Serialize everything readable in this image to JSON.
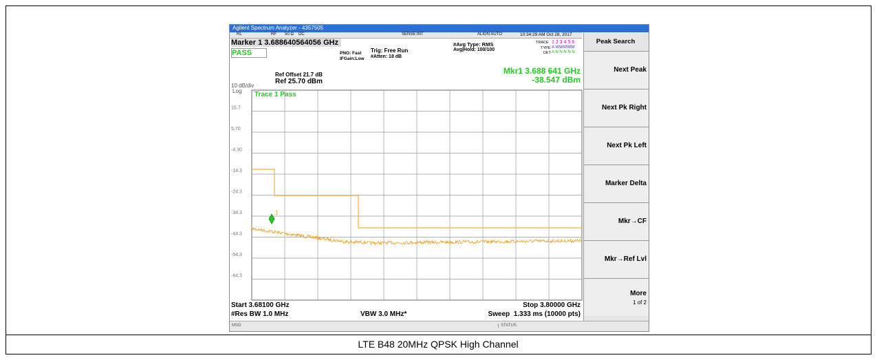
{
  "window_title": "Agilent Spectrum Analyzer - 4357505",
  "status_bar": {
    "rl": "RL",
    "rf": "RF",
    "impedance": "50 Ω",
    "coupling": "DC",
    "sense": "SENSE:INT",
    "align": "ALIGN AUTO",
    "datetime": "10:34:29 AM Oct 28, 2017"
  },
  "marker_readout": "Marker 1 3.688640564056 GHz",
  "pass_label": "PASS",
  "settings": {
    "pno": "PNO: Fast",
    "ifgain": "IFGain:Low",
    "trig": "Trig: Free Run",
    "atten": "#Atten: 18 dB",
    "avg_type": "#Avg Type: RMS",
    "avg_hold": "Avg|Hold: 100/100"
  },
  "trace_info": {
    "trace": "TRACE",
    "trace_nums": "1 2 3 4 5 6",
    "type": "TYPE",
    "type_val": "A WWWWW",
    "det": "DET",
    "det_val": "A N N N N N"
  },
  "ref_offset": "Ref Offset 21.7 dB",
  "ref_level": "Ref 25.70 dBm",
  "scale": "10 dB/div",
  "scale_type": "Log",
  "marker_freq": "Mkr1 3.688 641 GHz",
  "marker_amp": "-38.547 dBm",
  "trace_status": "Trace 1 Pass",
  "y_labels": [
    "15.7",
    "5.70",
    "-4.30",
    "-14.3",
    "-24.3",
    "-34.3",
    "-44.3",
    "-54.3",
    "-64.3"
  ],
  "marker_number": "1",
  "start": "Start 3.68100 GHz",
  "res_bw": "#Res BW 1.0 MHz",
  "vbw": "VBW 3.0 MHz*",
  "stop": "Stop 3.80000 GHz",
  "sweep": "Sweep  1.333 ms (10000 pts)",
  "msg": "MSG",
  "status": "STATUS",
  "softkeys": {
    "title": "Peak Search",
    "buttons": [
      {
        "label": "Next Peak"
      },
      {
        "label": "Next Pk Right"
      },
      {
        "label": "Next Pk Left"
      },
      {
        "label": "Marker Delta"
      },
      {
        "label": "Mkr→CF"
      },
      {
        "label": "Mkr→Ref Lvl"
      },
      {
        "label": "More",
        "sub": "1 of 2"
      }
    ]
  },
  "caption": "LTE B48 20MHz QPSK High Channel"
}
